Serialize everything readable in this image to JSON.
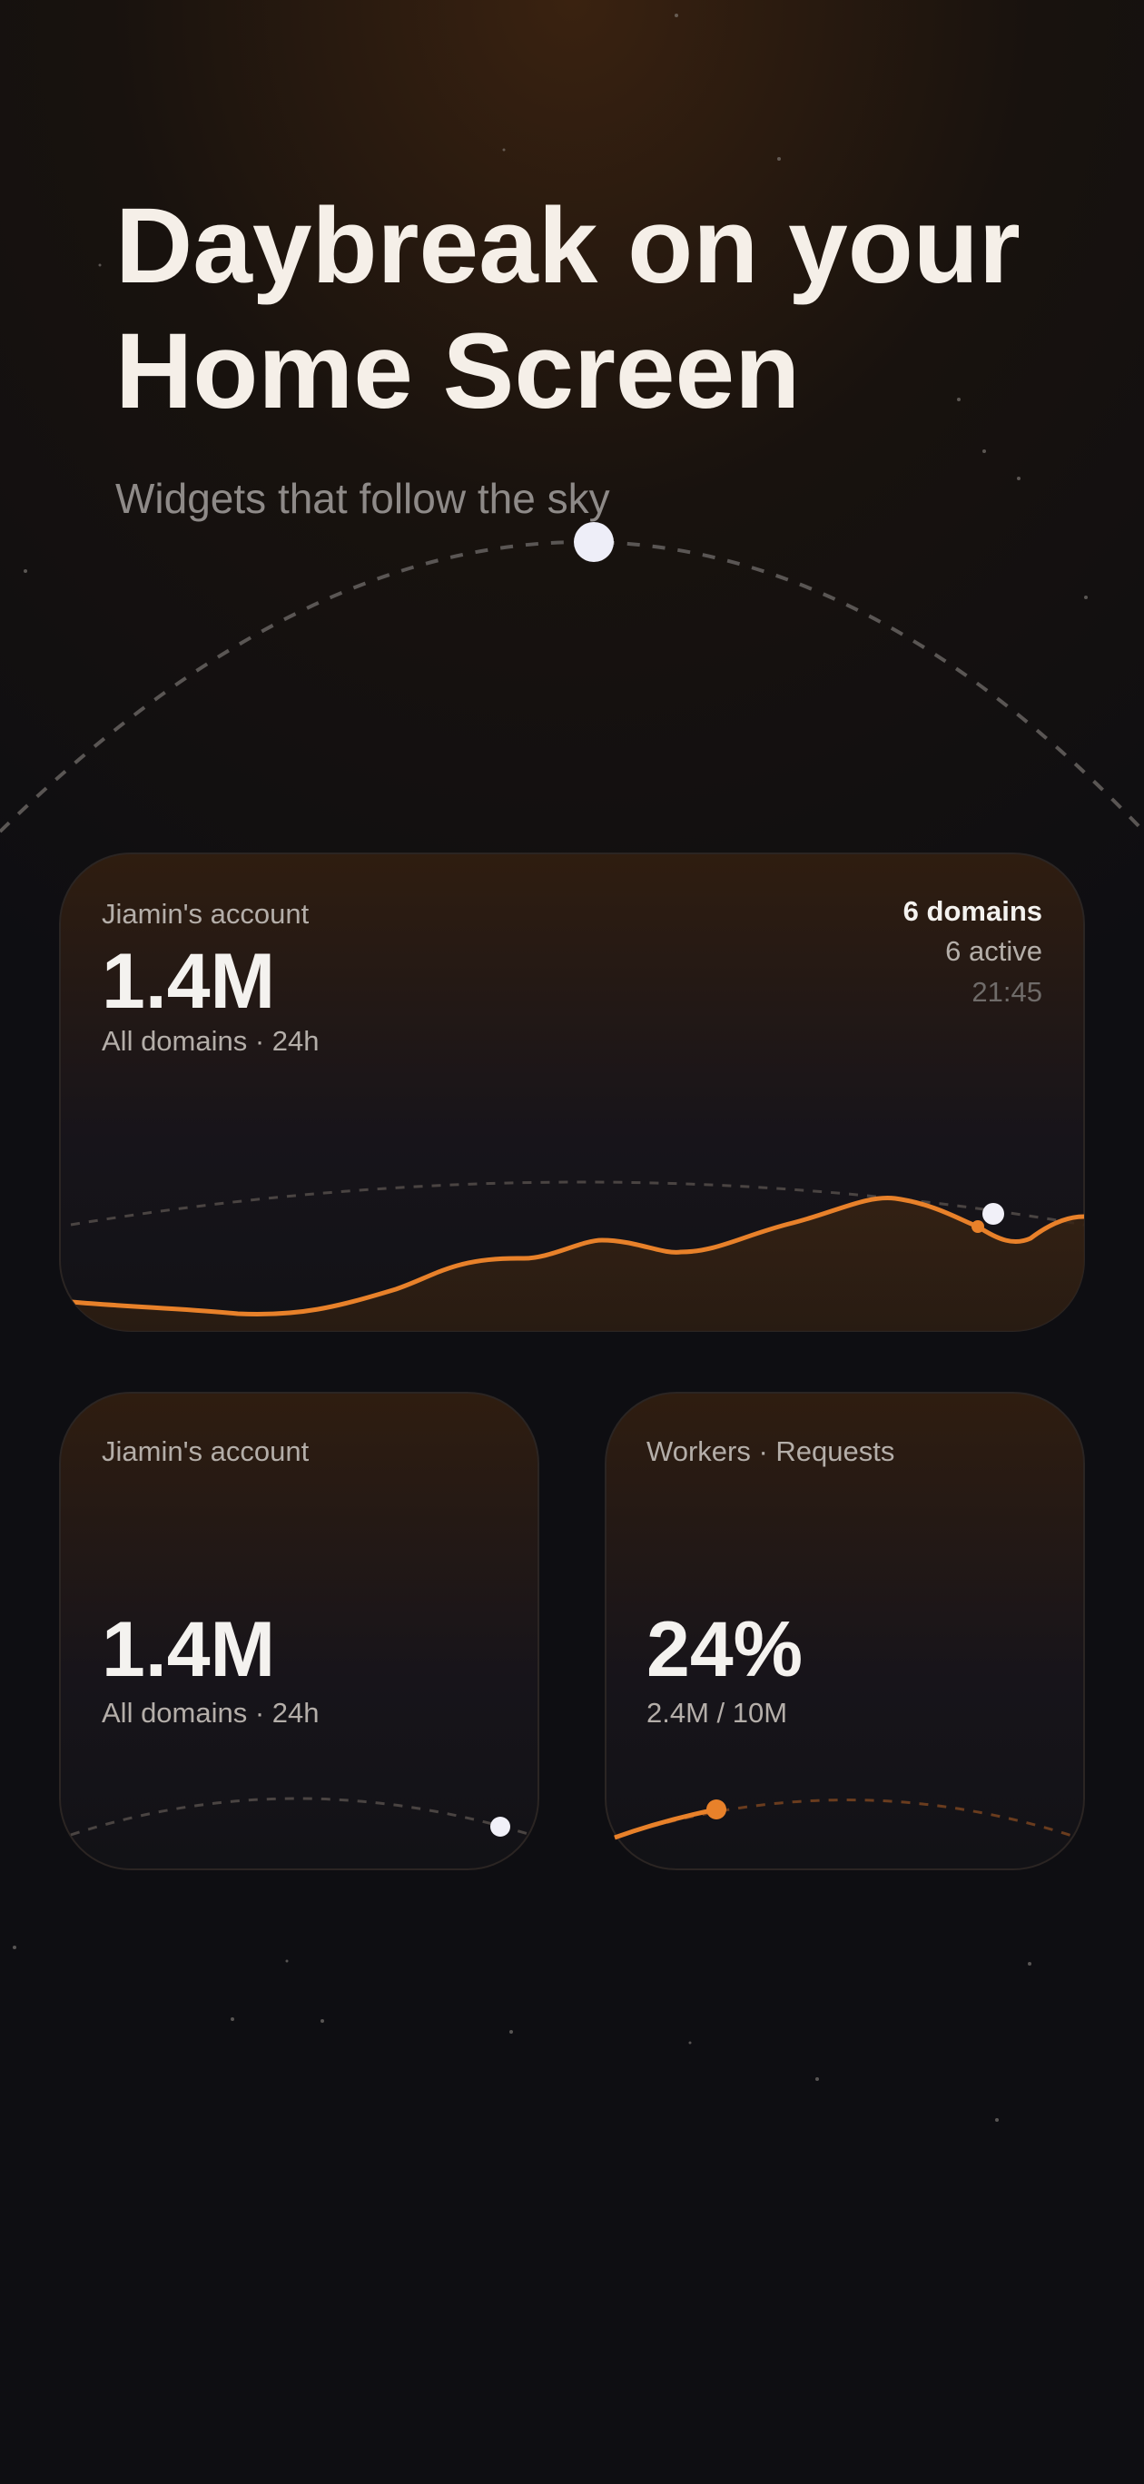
{
  "header": {
    "title_lines": [
      "Daybreak on your",
      "Home Screen"
    ],
    "subtitle": "Widgets that follow the sky"
  },
  "widgets": [
    {
      "account": "Jiamin's account",
      "value": "1.4M",
      "scope": "All domains · 24h",
      "domains": "6 domains",
      "active": "6 active",
      "time": "21:45"
    },
    {
      "account": "Jiamin's account",
      "value": "1.4M",
      "scope": "All domains · 24h"
    },
    {
      "label": "Workers · Requests",
      "value": "24%",
      "detail": "2.4M / 10M"
    }
  ]
}
